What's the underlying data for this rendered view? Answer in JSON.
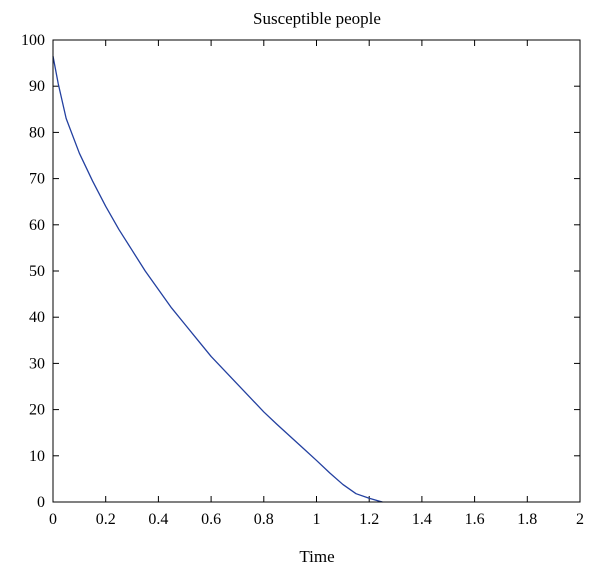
{
  "chart_data": {
    "type": "line",
    "title": "Susceptible people",
    "xlabel": "Time",
    "ylabel": "",
    "xlim": [
      0,
      2
    ],
    "ylim": [
      0,
      100
    ],
    "x_ticks": [
      "0",
      "0.2",
      "0.4",
      "0.6",
      "0.8",
      "1",
      "1.2",
      "1.4",
      "1.6",
      "1.8",
      "2"
    ],
    "y_ticks": [
      "0",
      "10",
      "20",
      "30",
      "40",
      "50",
      "60",
      "70",
      "80",
      "90",
      "100"
    ],
    "grid": false,
    "legend": "none",
    "series": [
      {
        "color": "#2340a0",
        "x": [
          0,
          0.02,
          0.05,
          0.1,
          0.15,
          0.2,
          0.25,
          0.3,
          0.35,
          0.4,
          0.45,
          0.5,
          0.55,
          0.6,
          0.65,
          0.7,
          0.75,
          0.8,
          0.85,
          0.9,
          0.95,
          1.0,
          1.05,
          1.1,
          1.15,
          1.2,
          1.25
        ],
        "y": [
          96.5,
          90.5,
          83,
          75.5,
          69.5,
          64,
          59,
          54.5,
          50,
          46,
          42,
          38.5,
          35,
          31.5,
          28.5,
          25.5,
          22.5,
          19.5,
          16.8,
          14.2,
          11.6,
          9.0,
          6.3,
          3.8,
          1.8,
          0.8,
          0
        ]
      }
    ]
  }
}
